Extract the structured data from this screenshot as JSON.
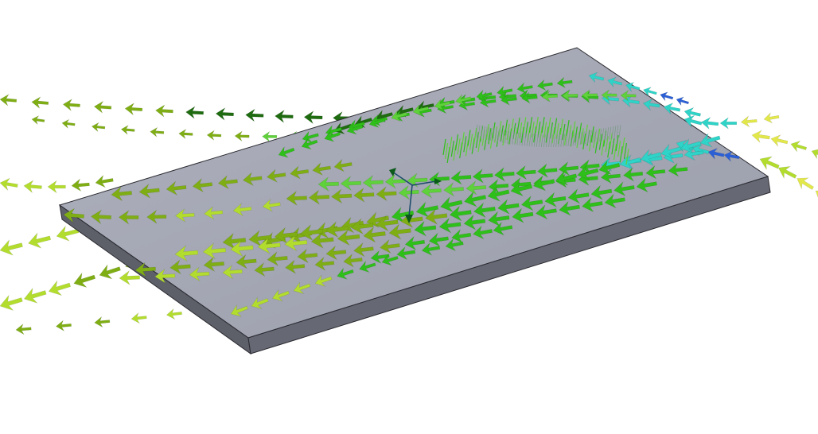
{
  "scene": {
    "object": "flat-plate",
    "plate_colors": {
      "top": "#a3a6b3",
      "front": "#62646f",
      "side": "#55575f",
      "edge": "#2a2a30"
    },
    "flow_direction": "right-to-left",
    "arrow_colors": {
      "dark_green": "#1e6b10",
      "green": "#2fbf1a",
      "light_green": "#5fd13a",
      "olive": "#7fae14",
      "yellow_green": "#b3dd2e",
      "yellow": "#e3e84a",
      "cyan": "#2fd3c7",
      "blue": "#2b5fd6"
    },
    "axis_triad_colors": {
      "stroke": "#1a4a6b",
      "tip": "#0b5a1a"
    },
    "has_axis_triad": true
  }
}
